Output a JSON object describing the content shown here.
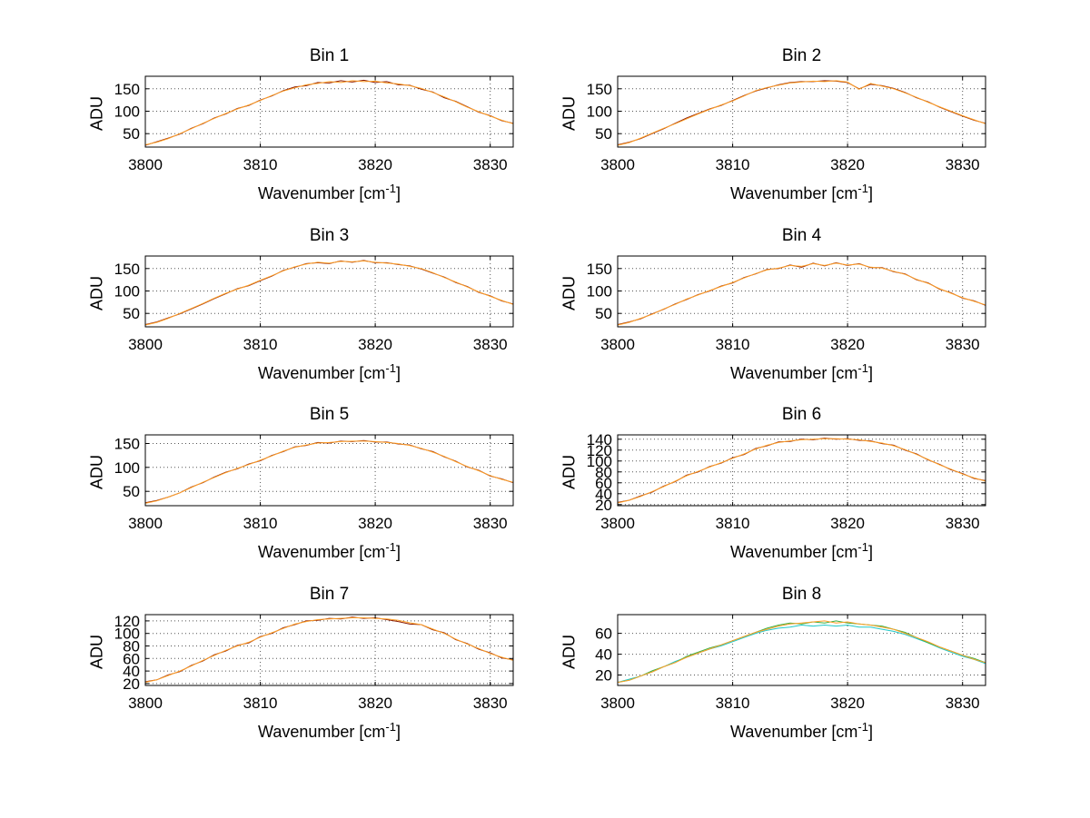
{
  "chart_data": {
    "type": "line",
    "layout": "2x4-subplot-grid",
    "background_color": "#ffffff",
    "grid": "dotted",
    "ylabel": "ADU",
    "xlabel": {
      "pre": "Wavenumber [cm",
      "sup": "-1",
      "post": "]"
    },
    "xlim": [
      3800,
      3832
    ],
    "xticks": [
      3800,
      3810,
      3820,
      3830
    ],
    "x": [
      3800,
      3801,
      3802,
      3803,
      3804,
      3805,
      3806,
      3807,
      3808,
      3809,
      3810,
      3811,
      3812,
      3813,
      3814,
      3815,
      3816,
      3817,
      3818,
      3819,
      3820,
      3821,
      3822,
      3823,
      3824,
      3825,
      3826,
      3827,
      3828,
      3829,
      3830,
      3831,
      3832
    ],
    "charts": [
      {
        "title": "Bin 1",
        "ylim": [
          20,
          178
        ],
        "yticks": [
          50,
          100,
          150
        ],
        "series": [
          {
            "name": "spectrum-underlay",
            "color": "#8b1a00",
            "y": [
              24,
              32,
              40,
              49,
              62,
              72,
              85,
              94,
              106,
              113,
              125,
              134,
              146,
              154,
              157,
              164,
              163,
              168,
              165,
              169,
              164,
              166,
              159,
              158,
              149,
              143,
              130,
              122,
              110,
              98,
              90,
              79,
              73
            ]
          },
          {
            "name": "spectrum",
            "color": "#ffa028",
            "y": [
              25,
              31,
              39,
              50,
              61,
              73,
              84,
              95,
              105,
              114,
              124,
              135,
              145,
              152,
              159,
              162,
              166,
              164,
              168,
              166,
              167,
              163,
              161,
              157,
              151,
              142,
              132,
              121,
              109,
              99,
              89,
              80,
              72
            ]
          }
        ]
      },
      {
        "title": "Bin 2",
        "ylim": [
          20,
          178
        ],
        "yticks": [
          50,
          100,
          150
        ],
        "series": [
          {
            "name": "spectrum-underlay",
            "color": "#8b1a00",
            "y": [
              25,
              31,
              39,
              50,
              61,
              73,
              85,
              95,
              105,
              113,
              124,
              135,
              145,
              152,
              159,
              164,
              166,
              166,
              168,
              167,
              164,
              150,
              160,
              157,
              151,
              142,
              130,
              121,
              109,
              99,
              89,
              80,
              73
            ]
          },
          {
            "name": "spectrum",
            "color": "#ffa028",
            "y": [
              24,
              30,
              40,
              51,
              62,
              72,
              83,
              94,
              104,
              114,
              123,
              134,
              146,
              153,
              158,
              163,
              165,
              167,
              166,
              168,
              165,
              149,
              162,
              156,
              150,
              141,
              131,
              120,
              110,
              100,
              90,
              81,
              72
            ]
          }
        ]
      },
      {
        "title": "Bin 3",
        "ylim": [
          20,
          178
        ],
        "yticks": [
          50,
          100,
          150
        ],
        "series": [
          {
            "name": "spectrum-underlay",
            "color": "#8b1a00",
            "y": [
              25,
              31,
              40,
              49,
              60,
              71,
              83,
              94,
              105,
              112,
              123,
              133,
              146,
              153,
              161,
              163,
              161,
              167,
              164,
              168,
              163,
              163,
              159,
              156,
              149,
              140,
              131,
              119,
              110,
              97,
              89,
              78,
              71
            ]
          },
          {
            "name": "spectrum",
            "color": "#ffa028",
            "y": [
              24,
              30,
              39,
              50,
              61,
              72,
              84,
              95,
              104,
              113,
              124,
              134,
              145,
              154,
              160,
              164,
              162,
              166,
              165,
              167,
              164,
              162,
              160,
              155,
              150,
              141,
              130,
              120,
              109,
              98,
              88,
              79,
              70
            ]
          }
        ]
      },
      {
        "title": "Bin 4",
        "ylim": [
          20,
          178
        ],
        "yticks": [
          50,
          100,
          150
        ],
        "series": [
          {
            "name": "spectrum-underlay",
            "color": "#8b1a00",
            "y": [
              25,
              31,
              38,
              49,
              59,
              71,
              81,
              92,
              100,
              111,
              118,
              130,
              138,
              148,
              150,
              158,
              153,
              162,
              156,
              163,
              157,
              161,
              152,
              152,
              143,
              138,
              125,
              118,
              104,
              96,
              84,
              78,
              68
            ]
          },
          {
            "name": "spectrum",
            "color": "#ffa028",
            "y": [
              24,
              30,
              39,
              48,
              60,
              70,
              82,
              91,
              101,
              110,
              119,
              129,
              139,
              147,
              151,
              157,
              155,
              161,
              157,
              162,
              158,
              160,
              153,
              151,
              144,
              137,
              126,
              117,
              105,
              95,
              85,
              77,
              69
            ]
          }
        ]
      },
      {
        "title": "Bin 5",
        "ylim": [
          20,
          168
        ],
        "yticks": [
          50,
          100,
          150
        ],
        "series": [
          {
            "name": "spectrum-underlay",
            "color": "#8b1a00",
            "y": [
              26,
              31,
              38,
              47,
              59,
              68,
              80,
              90,
              97,
              107,
              114,
              125,
              133,
              143,
              146,
              152,
              151,
              155,
              154,
              156,
              153,
              153,
              149,
              147,
              139,
              133,
              122,
              113,
              101,
              94,
              82,
              76,
              68
            ]
          },
          {
            "name": "spectrum",
            "color": "#ffa028",
            "y": [
              25,
              30,
              38,
              47,
              58,
              69,
              79,
              89,
              98,
              106,
              115,
              124,
              134,
              142,
              147,
              151,
              152,
              154,
              155,
              155,
              154,
              152,
              150,
              146,
              140,
              132,
              123,
              112,
              102,
              93,
              83,
              75,
              69
            ]
          }
        ]
      },
      {
        "title": "Bin 6",
        "ylim": [
          18,
          148
        ],
        "yticks": [
          20,
          40,
          60,
          80,
          100,
          120,
          140
        ],
        "series": [
          {
            "name": "spectrum-underlay",
            "color": "#8b1a00",
            "y": [
              24,
              28,
              36,
              43,
              54,
              62,
              74,
              80,
              90,
              96,
              106,
              112,
              123,
              128,
              135,
              136,
              140,
              139,
              142,
              140,
              141,
              138,
              137,
              132,
              129,
              120,
              113,
              102,
              94,
              84,
              77,
              68,
              64
            ]
          },
          {
            "name": "spectrum",
            "color": "#ffa028",
            "y": [
              23,
              28,
              35,
              44,
              53,
              63,
              73,
              81,
              89,
              97,
              105,
              113,
              122,
              129,
              134,
              137,
              139,
              140,
              141,
              141,
              140,
              139,
              136,
              133,
              128,
              121,
              112,
              103,
              93,
              85,
              76,
              69,
              63
            ]
          }
        ]
      },
      {
        "title": "Bin 7",
        "ylim": [
          17,
          130
        ],
        "yticks": [
          20,
          40,
          60,
          80,
          100,
          120
        ],
        "series": [
          {
            "name": "spectrum-underlay",
            "color": "#8b1a00",
            "y": [
              23,
              26,
              34,
              39,
              49,
              56,
              66,
              72,
              81,
              85,
              95,
              100,
              109,
              114,
              120,
              121,
              124,
              123,
              126,
              124,
              125,
              122,
              119,
              115,
              114,
              106,
              101,
              90,
              84,
              75,
              69,
              61,
              58
            ]
          },
          {
            "name": "spectrum",
            "color": "#ffa028",
            "y": [
              22,
              26,
              33,
              40,
              48,
              57,
              65,
              73,
              80,
              86,
              94,
              101,
              108,
              115,
              119,
              122,
              123,
              124,
              125,
              125,
              124,
              123,
              121,
              117,
              114,
              107,
              100,
              91,
              83,
              76,
              68,
              62,
              57
            ]
          }
        ]
      },
      {
        "title": "Bin 8",
        "ylim": [
          10,
          78
        ],
        "yticks": [
          20,
          40,
          60
        ],
        "series": [
          {
            "name": "spectrum-cyan",
            "color": "#1ec8c8",
            "y": [
              13,
              16,
              19,
              23,
              28,
              33,
              37,
              41,
              45,
              48,
              52,
              56,
              60,
              63,
              65,
              66,
              68,
              67,
              68,
              67,
              68,
              66,
              66,
              64,
              62,
              59,
              55,
              51,
              46,
              42,
              38,
              35,
              31
            ]
          },
          {
            "name": "spectrum-green",
            "color": "#3cb043",
            "y": [
              13,
              15,
              19,
              24,
              28,
              32,
              38,
              42,
              46,
              49,
              53,
              57,
              61,
              65,
              68,
              70,
              69,
              71,
              70,
              72,
              70,
              69,
              68,
              67,
              64,
              61,
              56,
              51,
              47,
              43,
              39,
              36,
              32
            ]
          },
          {
            "name": "spectrum",
            "color": "#ffa028",
            "y": [
              13,
              15,
              19,
              23,
              28,
              32,
              37,
              41,
              45,
              49,
              53,
              57,
              61,
              64,
              67,
              69,
              70,
              71,
              72,
              70,
              71,
              69,
              68,
              66,
              64,
              60,
              56,
              52,
              47,
              43,
              39,
              35,
              32
            ]
          }
        ]
      }
    ]
  }
}
